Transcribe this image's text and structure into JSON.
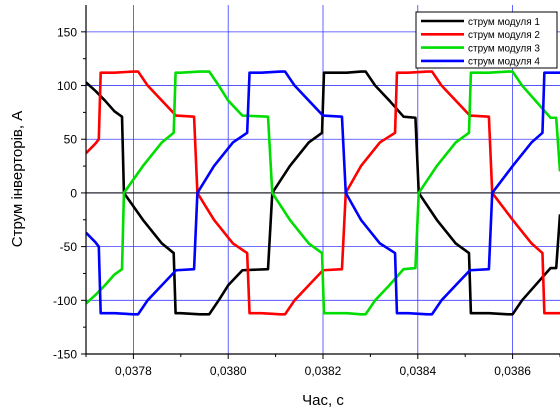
{
  "chart_data": {
    "type": "line",
    "title": "",
    "xlabel": "Час, с",
    "ylabel": "Струм інверторів, А",
    "xlim": [
      0.0377,
      0.0387
    ],
    "ylim": [
      -150,
      175
    ],
    "x_ticks": [
      0.0378,
      0.038,
      0.0382,
      0.0384,
      0.0386
    ],
    "x_tick_labels": [
      "0,0378",
      "0,0380",
      "0,0382",
      "0,0384",
      "0,0386"
    ],
    "y_ticks": [
      -150,
      -100,
      -50,
      0,
      50,
      100,
      150
    ],
    "y_tick_labels": [
      "-150",
      "-100",
      "-50",
      "0",
      "50",
      "100",
      "150"
    ],
    "grid": true,
    "legend_position": "top-right",
    "series": [
      {
        "name": "струм модуля 1",
        "color": "#000000",
        "points": [
          [
            0.0377,
            103
          ],
          [
            0.03772,
            95
          ],
          [
            0.03774,
            86
          ],
          [
            0.03776,
            76
          ],
          [
            0.037776,
            71
          ],
          [
            0.03778,
            0
          ],
          [
            0.03782,
            -25
          ],
          [
            0.03786,
            -47
          ],
          [
            0.037885,
            -56
          ],
          [
            0.037889,
            -112
          ],
          [
            0.0379,
            -112
          ],
          [
            0.03794,
            -113
          ],
          [
            0.03796,
            -113
          ],
          [
            0.03798,
            -100
          ],
          [
            0.038,
            -86
          ],
          [
            0.03803,
            -72
          ],
          [
            0.038084,
            -71
          ],
          [
            0.038093,
            0
          ],
          [
            0.03813,
            25
          ],
          [
            0.03817,
            47
          ],
          [
            0.038198,
            56
          ],
          [
            0.038202,
            112
          ],
          [
            0.03825,
            112
          ],
          [
            0.03828,
            113
          ],
          [
            0.03829,
            113
          ],
          [
            0.03831,
            100
          ],
          [
            0.03834,
            86
          ],
          [
            0.03837,
            71
          ],
          [
            0.038395,
            70
          ],
          [
            0.038402,
            0
          ],
          [
            0.03844,
            -25
          ],
          [
            0.03848,
            -47
          ],
          [
            0.038508,
            -56
          ],
          [
            0.038512,
            -112
          ],
          [
            0.03855,
            -112
          ],
          [
            0.03859,
            -113
          ],
          [
            0.0386,
            -113
          ],
          [
            0.03862,
            -100
          ],
          [
            0.03865,
            -85
          ],
          [
            0.03868,
            -70
          ],
          [
            0.038692,
            -70
          ],
          [
            0.0387,
            -20
          ]
        ]
      },
      {
        "name": "струм модуля 2",
        "color": "#ff0000",
        "points": [
          [
            0.0377,
            37
          ],
          [
            0.03772,
            46
          ],
          [
            0.037727,
            50
          ],
          [
            0.037731,
            112
          ],
          [
            0.03776,
            112
          ],
          [
            0.0378,
            113
          ],
          [
            0.03781,
            113
          ],
          [
            0.03783,
            100
          ],
          [
            0.03786,
            86
          ],
          [
            0.03789,
            72
          ],
          [
            0.037928,
            71
          ],
          [
            0.037935,
            0
          ],
          [
            0.03797,
            -25
          ],
          [
            0.03801,
            -47
          ],
          [
            0.03804,
            -56
          ],
          [
            0.038045,
            -112
          ],
          [
            0.03807,
            -112
          ],
          [
            0.03811,
            -113
          ],
          [
            0.03812,
            -113
          ],
          [
            0.03814,
            -100
          ],
          [
            0.03817,
            -86
          ],
          [
            0.0382,
            -72
          ],
          [
            0.03824,
            -71
          ],
          [
            0.038248,
            0
          ],
          [
            0.03828,
            25
          ],
          [
            0.03832,
            47
          ],
          [
            0.038352,
            56
          ],
          [
            0.038356,
            112
          ],
          [
            0.03838,
            112
          ],
          [
            0.03842,
            113
          ],
          [
            0.03843,
            113
          ],
          [
            0.03845,
            100
          ],
          [
            0.03848,
            86
          ],
          [
            0.03851,
            72
          ],
          [
            0.03855,
            71
          ],
          [
            0.038557,
            0
          ],
          [
            0.0386,
            -25
          ],
          [
            0.03864,
            -47
          ],
          [
            0.038663,
            -56
          ],
          [
            0.038667,
            -112
          ],
          [
            0.0387,
            -112
          ]
        ]
      },
      {
        "name": "струм модуля 3",
        "color": "#00dd00",
        "points": [
          [
            0.0377,
            -103
          ],
          [
            0.03772,
            -95
          ],
          [
            0.03774,
            -86
          ],
          [
            0.03776,
            -76
          ],
          [
            0.037776,
            -71
          ],
          [
            0.03778,
            0
          ],
          [
            0.03782,
            25
          ],
          [
            0.03786,
            47
          ],
          [
            0.037885,
            56
          ],
          [
            0.037889,
            112
          ],
          [
            0.0379,
            112
          ],
          [
            0.03794,
            113
          ],
          [
            0.03796,
            113
          ],
          [
            0.03798,
            100
          ],
          [
            0.038,
            86
          ],
          [
            0.03803,
            72
          ],
          [
            0.038084,
            71
          ],
          [
            0.038093,
            0
          ],
          [
            0.03813,
            -25
          ],
          [
            0.03817,
            -47
          ],
          [
            0.038198,
            -56
          ],
          [
            0.038202,
            -112
          ],
          [
            0.03825,
            -112
          ],
          [
            0.03828,
            -113
          ],
          [
            0.03829,
            -113
          ],
          [
            0.03831,
            -100
          ],
          [
            0.03834,
            -86
          ],
          [
            0.03837,
            -71
          ],
          [
            0.038395,
            -70
          ],
          [
            0.038402,
            0
          ],
          [
            0.03844,
            25
          ],
          [
            0.03848,
            47
          ],
          [
            0.038508,
            56
          ],
          [
            0.038512,
            112
          ],
          [
            0.03855,
            112
          ],
          [
            0.03859,
            113
          ],
          [
            0.0386,
            113
          ],
          [
            0.03862,
            100
          ],
          [
            0.03865,
            85
          ],
          [
            0.03868,
            70
          ],
          [
            0.038692,
            70
          ],
          [
            0.0387,
            20
          ]
        ]
      },
      {
        "name": "струм модуля 4",
        "color": "#0000ff",
        "points": [
          [
            0.0377,
            -37
          ],
          [
            0.03772,
            -46
          ],
          [
            0.037727,
            -50
          ],
          [
            0.037731,
            -112
          ],
          [
            0.03776,
            -112
          ],
          [
            0.0378,
            -113
          ],
          [
            0.03781,
            -113
          ],
          [
            0.03783,
            -100
          ],
          [
            0.03786,
            -86
          ],
          [
            0.03789,
            -72
          ],
          [
            0.037928,
            -71
          ],
          [
            0.037935,
            0
          ],
          [
            0.03797,
            25
          ],
          [
            0.03801,
            47
          ],
          [
            0.03804,
            56
          ],
          [
            0.038045,
            112
          ],
          [
            0.03807,
            112
          ],
          [
            0.03811,
            113
          ],
          [
            0.03812,
            113
          ],
          [
            0.03814,
            100
          ],
          [
            0.03817,
            86
          ],
          [
            0.0382,
            72
          ],
          [
            0.03824,
            71
          ],
          [
            0.038248,
            0
          ],
          [
            0.03828,
            -25
          ],
          [
            0.03832,
            -47
          ],
          [
            0.038352,
            -56
          ],
          [
            0.038356,
            -112
          ],
          [
            0.03838,
            -112
          ],
          [
            0.03842,
            -113
          ],
          [
            0.03843,
            -113
          ],
          [
            0.03845,
            -100
          ],
          [
            0.03848,
            -86
          ],
          [
            0.03851,
            -72
          ],
          [
            0.03855,
            -71
          ],
          [
            0.038557,
            0
          ],
          [
            0.0386,
            25
          ],
          [
            0.03864,
            47
          ],
          [
            0.038663,
            56
          ],
          [
            0.038667,
            112
          ],
          [
            0.0387,
            112
          ]
        ]
      }
    ]
  }
}
